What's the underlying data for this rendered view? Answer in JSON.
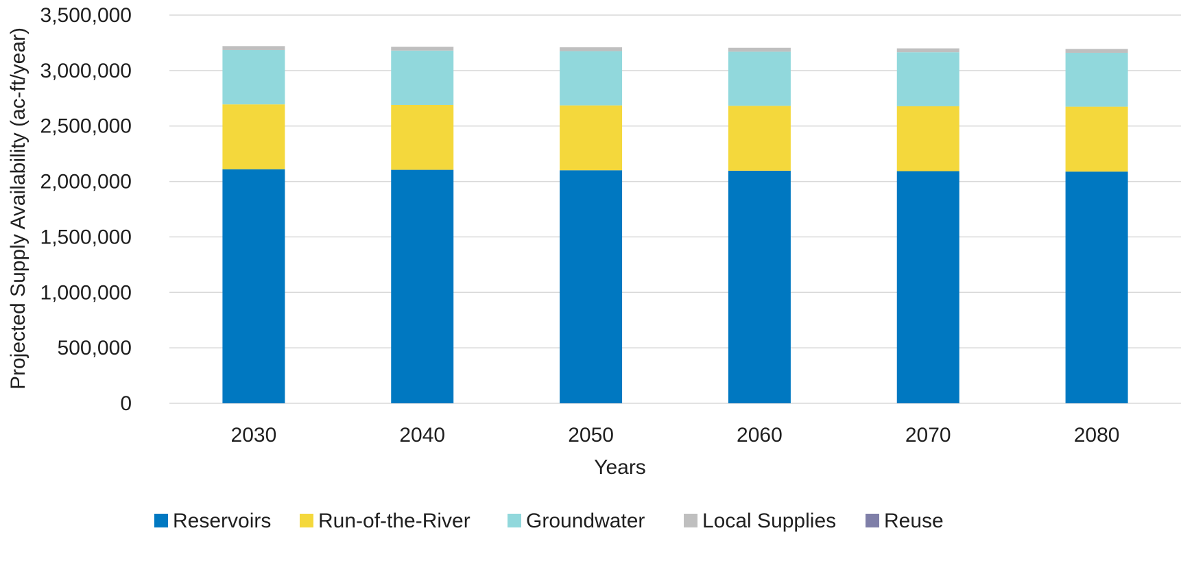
{
  "chart_data": {
    "type": "bar",
    "stacked": true,
    "categories": [
      "2030",
      "2040",
      "2050",
      "2060",
      "2070",
      "2080"
    ],
    "series": [
      {
        "name": "Reservoirs",
        "color": "#0078C1",
        "values": [
          2110000,
          2105000,
          2101000,
          2097000,
          2093000,
          2089000
        ]
      },
      {
        "name": "Run-of-the-River",
        "color": "#F4D83C",
        "values": [
          585000,
          585000,
          585000,
          585000,
          585000,
          585000
        ]
      },
      {
        "name": "Groundwater",
        "color": "#91D8DC",
        "values": [
          490000,
          490000,
          489000,
          488000,
          487000,
          486000
        ]
      },
      {
        "name": "Local Supplies",
        "color": "#BFBFBF",
        "values": [
          35000,
          35000,
          35000,
          35000,
          35000,
          35000
        ]
      },
      {
        "name": "Reuse",
        "color": "#7F7FA8",
        "values": [
          0,
          0,
          0,
          0,
          0,
          0
        ]
      }
    ],
    "xlabel": "Years",
    "ylabel": "Projected Supply Availability (ac-ft/year)",
    "ylim": [
      0,
      3500000
    ],
    "yticks": [
      0,
      500000,
      1000000,
      1500000,
      2000000,
      2500000,
      3000000,
      3500000
    ],
    "ytick_labels": [
      "0",
      "500,000",
      "1,000,000",
      "1,500,000",
      "2,000,000",
      "2,500,000",
      "3,000,000",
      "3,500,000"
    ],
    "grid": true,
    "legend_position": "bottom"
  }
}
